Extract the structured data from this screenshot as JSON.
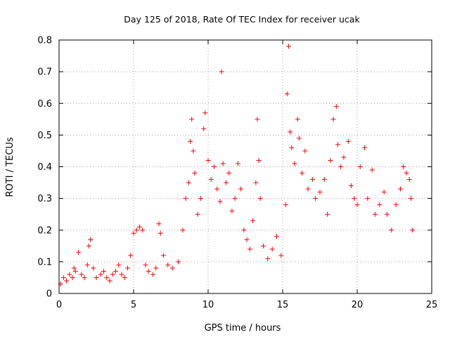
{
  "chart_data": {
    "type": "scatter",
    "title": "Day 125 of 2018, Rate Of TEC Index for receiver ucak",
    "xlabel": "GPS time / hours",
    "ylabel": "ROTI / TECUs",
    "xlim": [
      0,
      25
    ],
    "ylim": [
      0,
      0.8
    ],
    "x_ticks": [
      "0",
      "5",
      "10",
      "15",
      "20",
      "25"
    ],
    "y_ticks": [
      "0",
      "0.1",
      "0.2",
      "0.3",
      "0.4",
      "0.5",
      "0.6",
      "0.7",
      "0.8"
    ],
    "grid": true,
    "marker": "+",
    "point_color": "#ff0000",
    "series": [
      {
        "values": [
          [
            0.1,
            0.03
          ],
          [
            0.3,
            0.05
          ],
          [
            0.5,
            0.04
          ],
          [
            0.7,
            0.06
          ],
          [
            0.9,
            0.05
          ],
          [
            1.0,
            0.08
          ],
          [
            1.1,
            0.07
          ],
          [
            1.3,
            0.13
          ],
          [
            1.5,
            0.06
          ],
          [
            1.7,
            0.05
          ],
          [
            1.9,
            0.09
          ],
          [
            2.0,
            0.15
          ],
          [
            2.1,
            0.17
          ],
          [
            2.3,
            0.08
          ],
          [
            2.5,
            0.05
          ],
          [
            2.8,
            0.06
          ],
          [
            3.0,
            0.07
          ],
          [
            3.2,
            0.05
          ],
          [
            3.4,
            0.04
          ],
          [
            3.6,
            0.06
          ],
          [
            3.8,
            0.07
          ],
          [
            4.0,
            0.09
          ],
          [
            4.2,
            0.06
          ],
          [
            4.4,
            0.05
          ],
          [
            4.6,
            0.08
          ],
          [
            4.8,
            0.12
          ],
          [
            5.0,
            0.19
          ],
          [
            5.2,
            0.2
          ],
          [
            5.4,
            0.21
          ],
          [
            5.6,
            0.2
          ],
          [
            5.8,
            0.09
          ],
          [
            6.0,
            0.07
          ],
          [
            6.3,
            0.06
          ],
          [
            6.5,
            0.08
          ],
          [
            6.7,
            0.22
          ],
          [
            6.8,
            0.19
          ],
          [
            7.0,
            0.12
          ],
          [
            7.3,
            0.09
          ],
          [
            7.6,
            0.08
          ],
          [
            8.0,
            0.1
          ],
          [
            8.3,
            0.2
          ],
          [
            8.5,
            0.3
          ],
          [
            8.7,
            0.35
          ],
          [
            8.8,
            0.48
          ],
          [
            8.9,
            0.55
          ],
          [
            9.0,
            0.45
          ],
          [
            9.1,
            0.38
          ],
          [
            9.3,
            0.25
          ],
          [
            9.5,
            0.3
          ],
          [
            9.7,
            0.52
          ],
          [
            9.8,
            0.57
          ],
          [
            10.0,
            0.42
          ],
          [
            10.2,
            0.36
          ],
          [
            10.4,
            0.4
          ],
          [
            10.6,
            0.33
          ],
          [
            10.8,
            0.29
          ],
          [
            10.9,
            0.7
          ],
          [
            11.0,
            0.41
          ],
          [
            11.2,
            0.35
          ],
          [
            11.4,
            0.38
          ],
          [
            11.6,
            0.26
          ],
          [
            11.8,
            0.3
          ],
          [
            12.0,
            0.41
          ],
          [
            12.2,
            0.33
          ],
          [
            12.4,
            0.2
          ],
          [
            12.6,
            0.17
          ],
          [
            12.8,
            0.14
          ],
          [
            13.0,
            0.23
          ],
          [
            13.2,
            0.35
          ],
          [
            13.3,
            0.55
          ],
          [
            13.4,
            0.42
          ],
          [
            13.5,
            0.3
          ],
          [
            13.7,
            0.15
          ],
          [
            14.0,
            0.11
          ],
          [
            14.3,
            0.14
          ],
          [
            14.6,
            0.18
          ],
          [
            14.9,
            0.12
          ],
          [
            15.2,
            0.28
          ],
          [
            15.3,
            0.63
          ],
          [
            15.4,
            0.78
          ],
          [
            15.5,
            0.51
          ],
          [
            15.6,
            0.46
          ],
          [
            15.8,
            0.41
          ],
          [
            16.0,
            0.55
          ],
          [
            16.1,
            0.49
          ],
          [
            16.3,
            0.38
          ],
          [
            16.5,
            0.45
          ],
          [
            16.7,
            0.33
          ],
          [
            17.0,
            0.36
          ],
          [
            17.2,
            0.3
          ],
          [
            17.5,
            0.32
          ],
          [
            17.8,
            0.36
          ],
          [
            18.0,
            0.25
          ],
          [
            18.2,
            0.42
          ],
          [
            18.4,
            0.55
          ],
          [
            18.6,
            0.59
          ],
          [
            18.7,
            0.47
          ],
          [
            18.9,
            0.4
          ],
          [
            19.1,
            0.43
          ],
          [
            19.4,
            0.48
          ],
          [
            19.6,
            0.34
          ],
          [
            19.8,
            0.3
          ],
          [
            20.0,
            0.28
          ],
          [
            20.2,
            0.4
          ],
          [
            20.5,
            0.46
          ],
          [
            20.7,
            0.3
          ],
          [
            21.0,
            0.39
          ],
          [
            21.2,
            0.25
          ],
          [
            21.5,
            0.28
          ],
          [
            21.8,
            0.32
          ],
          [
            22.0,
            0.25
          ],
          [
            22.3,
            0.2
          ],
          [
            22.6,
            0.28
          ],
          [
            22.9,
            0.33
          ],
          [
            23.1,
            0.4
          ],
          [
            23.3,
            0.38
          ],
          [
            23.5,
            0.36
          ],
          [
            23.6,
            0.3
          ],
          [
            23.7,
            0.2
          ]
        ]
      }
    ]
  }
}
